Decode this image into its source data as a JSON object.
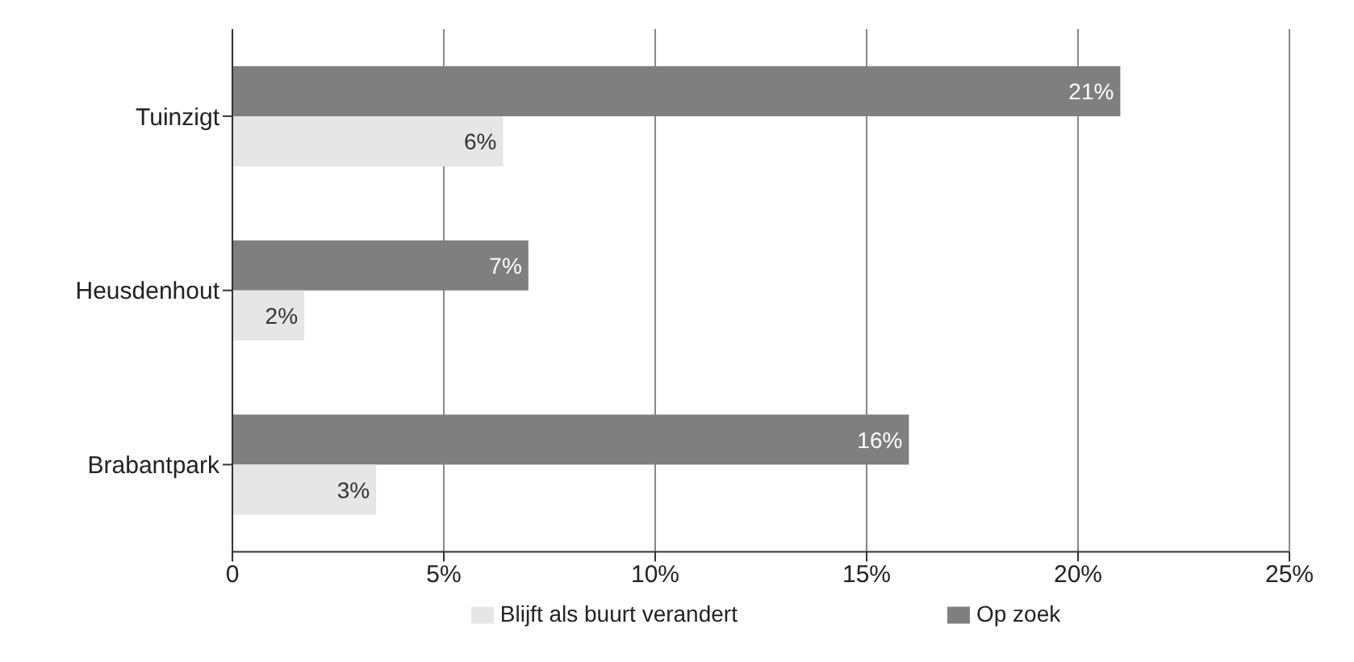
{
  "chart_data": {
    "type": "bar",
    "orientation": "horizontal",
    "categories": [
      "Tuinzigt",
      "Heusdenhout",
      "Brabantpark"
    ],
    "series": [
      {
        "name": "Op zoek",
        "color": "#7f7f7f",
        "values": [
          21,
          7,
          16
        ],
        "value_labels": [
          "21%",
          "7%",
          "16%"
        ]
      },
      {
        "name": "Blijft als buurt verandert",
        "color": "#e6e6e6",
        "values": [
          6.4,
          1.7,
          3.4
        ],
        "value_labels": [
          "6%",
          "2%",
          "3%"
        ]
      }
    ],
    "xlim": [
      0,
      25
    ],
    "xticks": [
      0,
      {
        "value": 5,
        "label": "5%"
      },
      {
        "value": 10,
        "label": "10%"
      },
      {
        "value": 15,
        "label": "15%"
      },
      {
        "value": 20,
        "label": "20%"
      },
      {
        "value": 25,
        "label": "25%"
      }
    ],
    "grid": "x",
    "legend": "bottom"
  }
}
